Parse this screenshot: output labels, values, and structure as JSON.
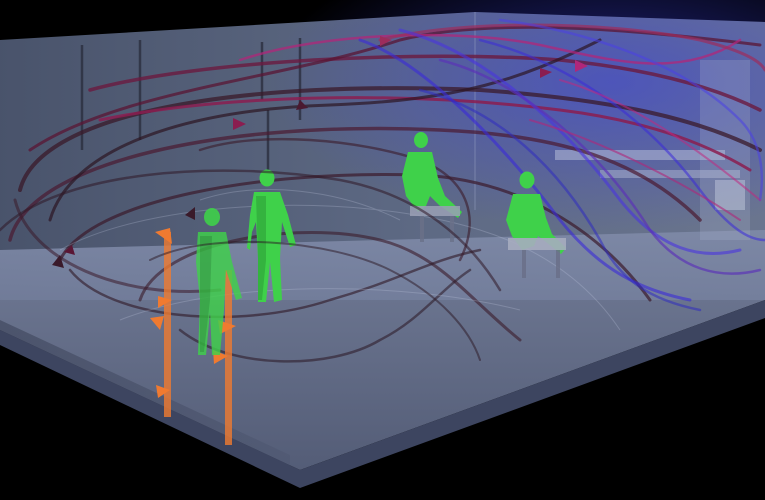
{
  "scene": {
    "subject": "cfd-airflow-streamlines-room-occupants",
    "background_color": "#000000",
    "room_fill": "#6f7e9c",
    "floor_fill": "#8a94b0",
    "streamline_colors": [
      "#2a1522",
      "#5a1634",
      "#8b1d50",
      "#b0277a",
      "#5a2fb8",
      "#3a2ad8"
    ],
    "occupant_color": "#3fd14a",
    "occupant_dark": "#1f7a2a",
    "column_color": "#f07a30",
    "counts": {
      "standing_occupants": 2,
      "seated_occupants": 2,
      "orange_columns": 2
    }
  }
}
